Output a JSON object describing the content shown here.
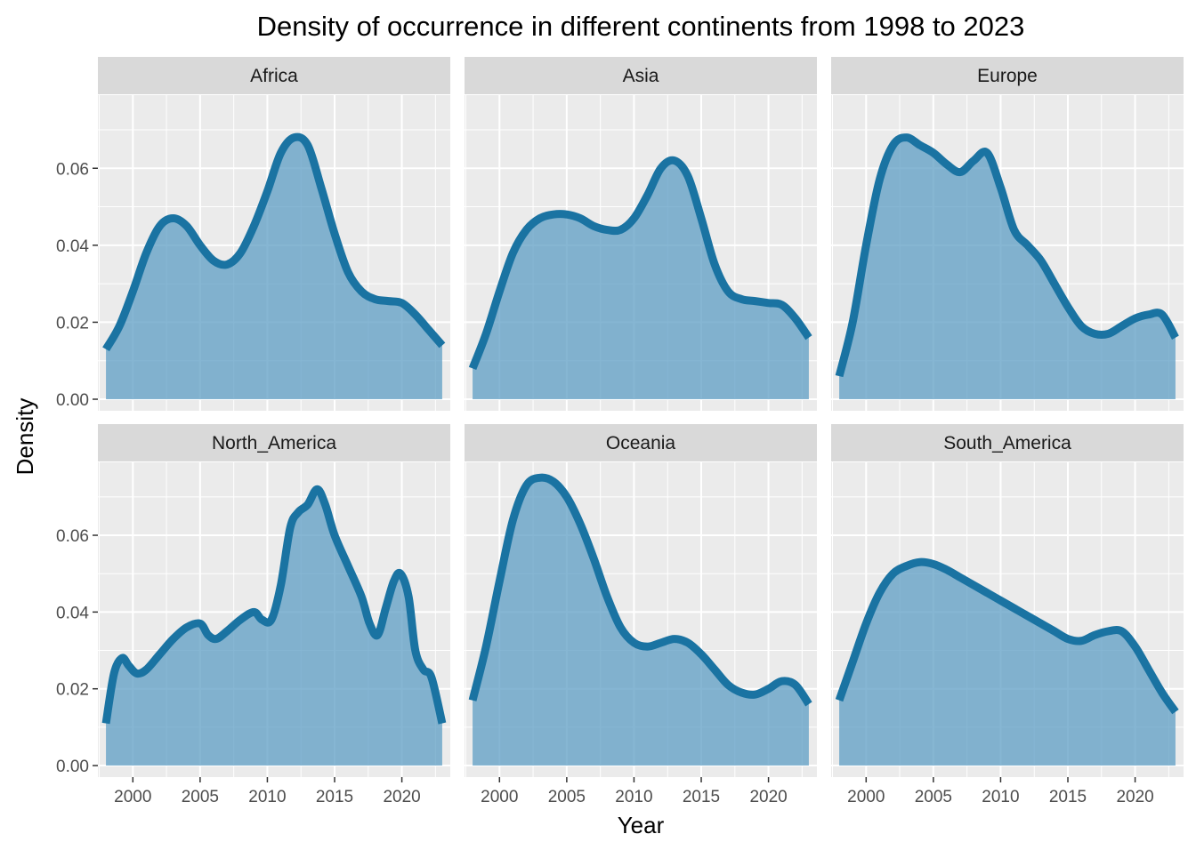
{
  "chart_data": {
    "type": "area",
    "title": "Density of occurrence in different continents from 1998 to 2023",
    "xlabel": "Year",
    "ylabel": "Density",
    "xlim": [
      1997.4,
      2023.6
    ],
    "ylim": [
      -0.003,
      0.079
    ],
    "x_ticks": [
      2000,
      2005,
      2010,
      2015,
      2020
    ],
    "y_ticks": [
      0.0,
      0.02,
      0.04,
      0.06
    ],
    "y_tick_labels": [
      "0.00",
      "0.02",
      "0.04",
      "0.06"
    ],
    "grid": true,
    "colors": {
      "line": "#1a73a2",
      "fill": "#5e9ec4",
      "panel": "#ebebeb",
      "strip": "#d9d9d9",
      "grid": "#ffffff"
    },
    "panels": [
      {
        "name": "Africa",
        "points": [
          [
            1998,
            0.013
          ],
          [
            1999,
            0.019
          ],
          [
            2000,
            0.028
          ],
          [
            2001,
            0.038
          ],
          [
            2002,
            0.045
          ],
          [
            2003,
            0.047
          ],
          [
            2004,
            0.045
          ],
          [
            2005,
            0.04
          ],
          [
            2006,
            0.036
          ],
          [
            2007,
            0.035
          ],
          [
            2008,
            0.038
          ],
          [
            2009,
            0.045
          ],
          [
            2010,
            0.054
          ],
          [
            2011,
            0.064
          ],
          [
            2012,
            0.068
          ],
          [
            2013,
            0.066
          ],
          [
            2014,
            0.055
          ],
          [
            2015,
            0.043
          ],
          [
            2016,
            0.033
          ],
          [
            2017,
            0.028
          ],
          [
            2018,
            0.026
          ],
          [
            2019,
            0.0255
          ],
          [
            2020,
            0.025
          ],
          [
            2021,
            0.022
          ],
          [
            2022,
            0.018
          ],
          [
            2023,
            0.014
          ]
        ]
      },
      {
        "name": "Asia",
        "points": [
          [
            1998,
            0.008
          ],
          [
            1999,
            0.017
          ],
          [
            2000,
            0.028
          ],
          [
            2001,
            0.038
          ],
          [
            2002,
            0.044
          ],
          [
            2003,
            0.047
          ],
          [
            2004,
            0.048
          ],
          [
            2005,
            0.048
          ],
          [
            2006,
            0.047
          ],
          [
            2007,
            0.045
          ],
          [
            2008,
            0.044
          ],
          [
            2009,
            0.044
          ],
          [
            2010,
            0.047
          ],
          [
            2011,
            0.053
          ],
          [
            2012,
            0.06
          ],
          [
            2013,
            0.062
          ],
          [
            2014,
            0.058
          ],
          [
            2015,
            0.047
          ],
          [
            2016,
            0.035
          ],
          [
            2017,
            0.028
          ],
          [
            2018,
            0.026
          ],
          [
            2019,
            0.0255
          ],
          [
            2020,
            0.025
          ],
          [
            2021,
            0.0245
          ],
          [
            2022,
            0.021
          ],
          [
            2023,
            0.016
          ]
        ]
      },
      {
        "name": "Europe",
        "points": [
          [
            1998,
            0.006
          ],
          [
            1999,
            0.02
          ],
          [
            2000,
            0.04
          ],
          [
            2001,
            0.057
          ],
          [
            2002,
            0.066
          ],
          [
            2003,
            0.068
          ],
          [
            2004,
            0.066
          ],
          [
            2005,
            0.064
          ],
          [
            2006,
            0.061
          ],
          [
            2007,
            0.059
          ],
          [
            2008,
            0.062
          ],
          [
            2009,
            0.064
          ],
          [
            2010,
            0.055
          ],
          [
            2011,
            0.044
          ],
          [
            2012,
            0.04
          ],
          [
            2013,
            0.036
          ],
          [
            2014,
            0.03
          ],
          [
            2015,
            0.024
          ],
          [
            2016,
            0.019
          ],
          [
            2017,
            0.017
          ],
          [
            2018,
            0.017
          ],
          [
            2019,
            0.019
          ],
          [
            2020,
            0.021
          ],
          [
            2021,
            0.022
          ],
          [
            2022,
            0.022
          ],
          [
            2023,
            0.016
          ]
        ]
      },
      {
        "name": "North_America",
        "points": [
          [
            1998,
            0.011
          ],
          [
            1998.6,
            0.024
          ],
          [
            1999.2,
            0.028
          ],
          [
            1999.7,
            0.026
          ],
          [
            2000.3,
            0.024
          ],
          [
            2001,
            0.025
          ],
          [
            2002,
            0.029
          ],
          [
            2003,
            0.033
          ],
          [
            2004,
            0.036
          ],
          [
            2005,
            0.037
          ],
          [
            2005.6,
            0.034
          ],
          [
            2006.2,
            0.033
          ],
          [
            2007,
            0.035
          ],
          [
            2008,
            0.038
          ],
          [
            2009,
            0.04
          ],
          [
            2009.6,
            0.038
          ],
          [
            2010.3,
            0.038
          ],
          [
            2011,
            0.047
          ],
          [
            2011.7,
            0.062
          ],
          [
            2012.3,
            0.066
          ],
          [
            2013,
            0.068
          ],
          [
            2013.7,
            0.072
          ],
          [
            2014.3,
            0.068
          ],
          [
            2015,
            0.06
          ],
          [
            2016,
            0.052
          ],
          [
            2017,
            0.044
          ],
          [
            2017.6,
            0.037
          ],
          [
            2018.2,
            0.034
          ],
          [
            2018.8,
            0.041
          ],
          [
            2019.4,
            0.048
          ],
          [
            2019.9,
            0.05
          ],
          [
            2020.5,
            0.044
          ],
          [
            2021,
            0.03
          ],
          [
            2021.6,
            0.025
          ],
          [
            2022.2,
            0.023
          ],
          [
            2023,
            0.011
          ]
        ]
      },
      {
        "name": "Oceania",
        "points": [
          [
            1998,
            0.017
          ],
          [
            1999,
            0.031
          ],
          [
            2000,
            0.048
          ],
          [
            2001,
            0.064
          ],
          [
            2002,
            0.073
          ],
          [
            2003,
            0.075
          ],
          [
            2004,
            0.074
          ],
          [
            2005,
            0.07
          ],
          [
            2006,
            0.063
          ],
          [
            2007,
            0.054
          ],
          [
            2008,
            0.044
          ],
          [
            2009,
            0.036
          ],
          [
            2010,
            0.032
          ],
          [
            2011,
            0.031
          ],
          [
            2012,
            0.032
          ],
          [
            2013,
            0.033
          ],
          [
            2014,
            0.032
          ],
          [
            2015,
            0.029
          ],
          [
            2016,
            0.025
          ],
          [
            2017,
            0.021
          ],
          [
            2018,
            0.019
          ],
          [
            2019,
            0.0185
          ],
          [
            2020,
            0.02
          ],
          [
            2021,
            0.022
          ],
          [
            2022,
            0.021
          ],
          [
            2023,
            0.016
          ]
        ]
      },
      {
        "name": "South_America",
        "points": [
          [
            1998,
            0.017
          ],
          [
            1999,
            0.027
          ],
          [
            2000,
            0.037
          ],
          [
            2001,
            0.045
          ],
          [
            2002,
            0.05
          ],
          [
            2003,
            0.052
          ],
          [
            2004,
            0.053
          ],
          [
            2005,
            0.0525
          ],
          [
            2006,
            0.051
          ],
          [
            2007,
            0.049
          ],
          [
            2008,
            0.047
          ],
          [
            2009,
            0.045
          ],
          [
            2010,
            0.043
          ],
          [
            2011,
            0.041
          ],
          [
            2012,
            0.039
          ],
          [
            2013,
            0.037
          ],
          [
            2014,
            0.035
          ],
          [
            2015,
            0.033
          ],
          [
            2016,
            0.0325
          ],
          [
            2017,
            0.034
          ],
          [
            2018,
            0.035
          ],
          [
            2019,
            0.035
          ],
          [
            2020,
            0.031
          ],
          [
            2021,
            0.025
          ],
          [
            2022,
            0.019
          ],
          [
            2023,
            0.014
          ]
        ]
      }
    ]
  }
}
